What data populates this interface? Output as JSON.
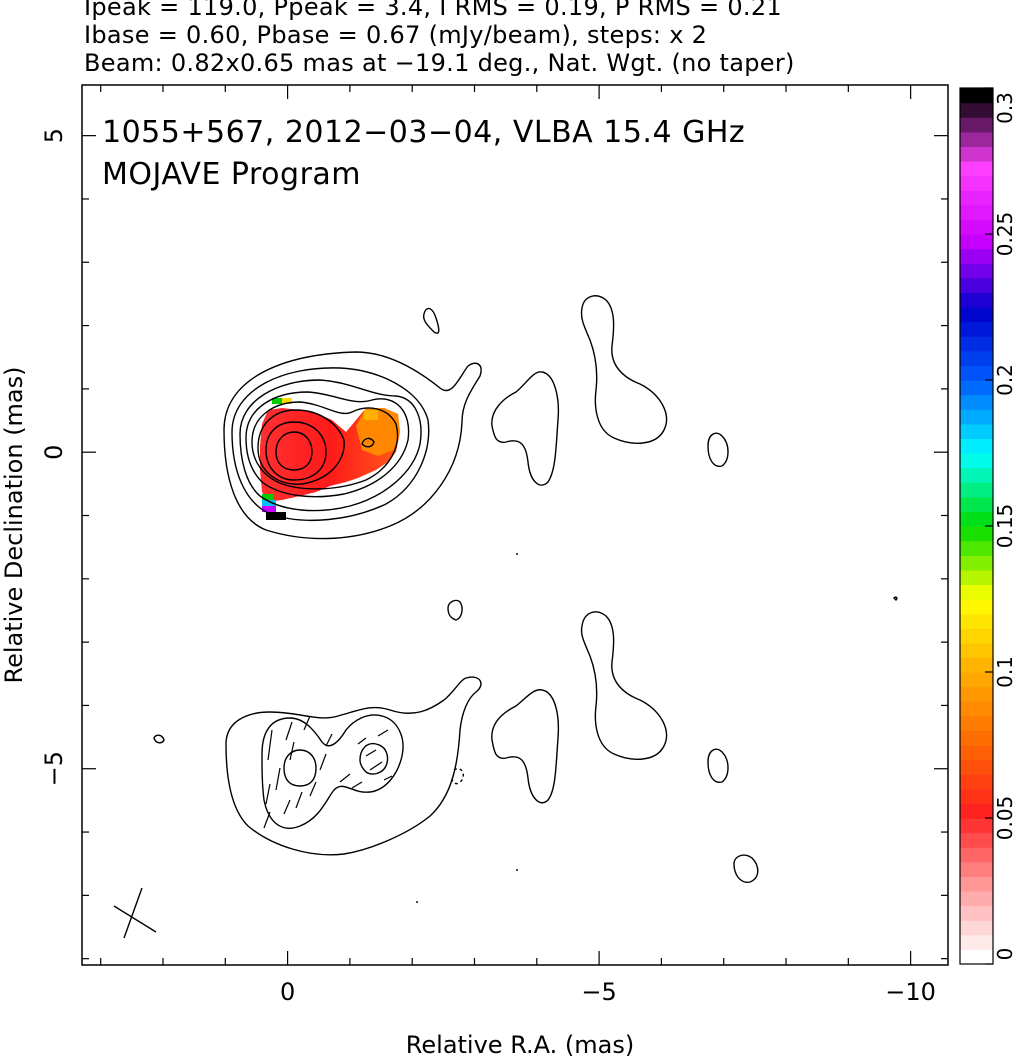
{
  "header": {
    "line1": "Ipeak = 119.0, Ppeak = 3.4, I RMS = 0.19, P RMS = 0.21",
    "line2": "Ibase = 0.60, Pbase = 0.67 (mJy/beam), steps: x 2",
    "line3": "Beam: 0.82x0.65 mas at −19.1 deg., Nat. Wgt. (no taper)"
  },
  "chart_data": {
    "type": "heatmap",
    "title": "1055+567, 2012−03−04, VLBA 15.4 GHz",
    "subtitle": "MOJAVE Program",
    "xlabel": "Relative R.A. (mas)",
    "ylabel": "Relative Declination (mas)",
    "xlim": [
      3.3,
      -10.6
    ],
    "ylim": [
      -8.1,
      5.8
    ],
    "x_ticks": [
      {
        "value": 0,
        "label": "0"
      },
      {
        "value": -5,
        "label": "−5"
      },
      {
        "value": -10,
        "label": "−10"
      }
    ],
    "y_ticks": [
      {
        "value": 5,
        "label": "5"
      },
      {
        "value": 0,
        "label": "0"
      },
      {
        "value": -5,
        "label": "−5"
      }
    ],
    "colorbar": {
      "range": [
        0,
        0.3
      ],
      "ticks": [
        {
          "value": 0,
          "label": "0"
        },
        {
          "value": 0.05,
          "label": "0.05"
        },
        {
          "value": 0.1,
          "label": "0.1"
        },
        {
          "value": 0.15,
          "label": "0.15"
        },
        {
          "value": 0.2,
          "label": "0.2"
        },
        {
          "value": 0.25,
          "label": "0.25"
        },
        {
          "value": 0.3,
          "label": "0.3"
        }
      ],
      "colors": [
        "#ffffff",
        "#ff9999",
        "#ff2020",
        "#ff6a00",
        "#ffb000",
        "#ffff00",
        "#00dd00",
        "#00ffff",
        "#0060ff",
        "#0000cc",
        "#cc00ff",
        "#ff40ff",
        "#000000"
      ]
    },
    "fractional_polarization_regions": [
      {
        "center": [
          0.0,
          0.0
        ],
        "value": 0.04
      },
      {
        "center": [
          -1.3,
          0.1
        ],
        "value": 0.09
      },
      {
        "center": [
          0.3,
          -0.9
        ],
        "value": 0.3
      }
    ],
    "contour_levels_stokes_I_mJy_per_beam": [
      0.6,
      1.2,
      2.4,
      4.8,
      9.6,
      19.2,
      38.4,
      76.8
    ],
    "beam": {
      "major_mas": 0.82,
      "minor_mas": 0.65,
      "pa_deg": -19.1
    },
    "upper_panel_offset_dec": 0,
    "lower_panel_offset_dec": -5
  }
}
